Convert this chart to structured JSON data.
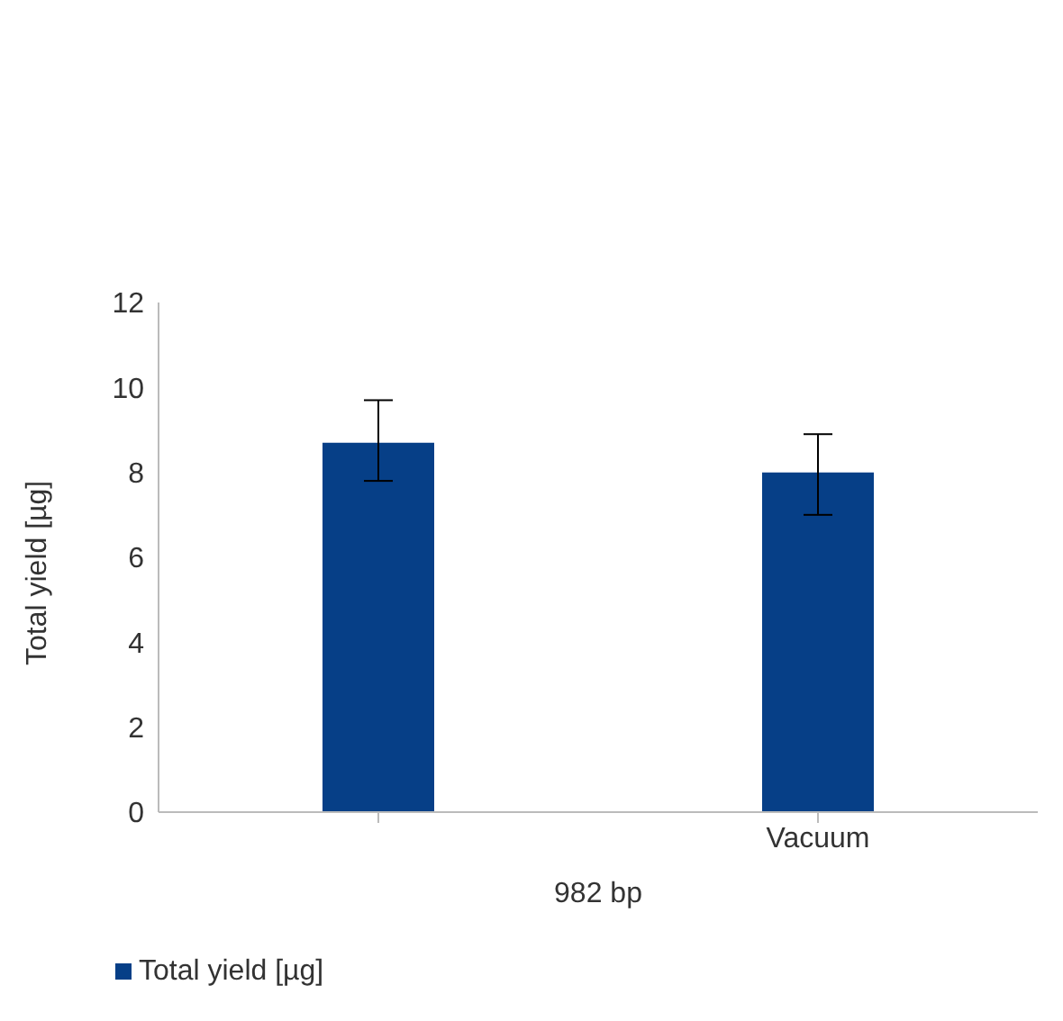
{
  "chart_data": {
    "type": "bar",
    "categories": [
      null,
      "Vacuum"
    ],
    "series": [
      {
        "name": "Total yield [µg]",
        "color": "#063f87",
        "values": [
          8.7,
          8.0
        ],
        "errors": [
          [
            7.8,
            9.7
          ],
          [
            7.0,
            8.9
          ]
        ]
      }
    ],
    "xlabel": "982 bp",
    "ylabel": "Total yield [µg]",
    "ylim": [
      0,
      12
    ],
    "yticks": [
      0,
      2,
      4,
      6,
      8,
      10,
      12
    ],
    "legend": "bottom left"
  }
}
